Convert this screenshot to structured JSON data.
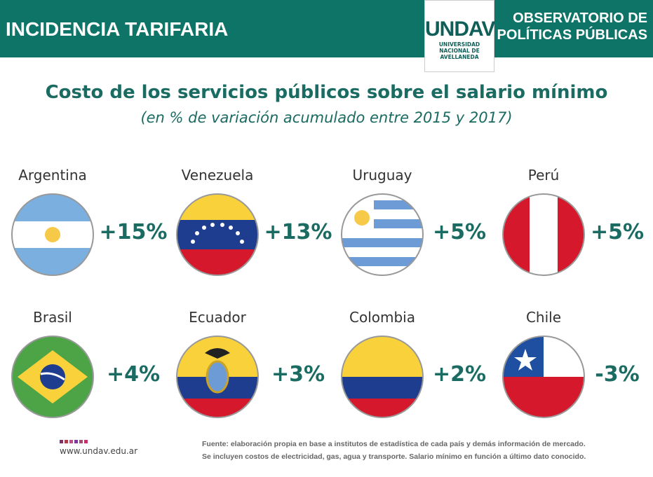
{
  "header": {
    "title": "INCIDENCIA TARIFARIA",
    "logo": "UNDAV",
    "logo_sub": [
      "UNIVERSIDAD",
      "NACIONAL DE",
      "AVELLANEDA"
    ],
    "observatory": [
      "OBSERVATORIO DE",
      "POLÍTICAS PÚBLICAS"
    ]
  },
  "title": "Costo de los servicios públicos sobre el salario mínimo",
  "subtitle": "(en % de variación acumulado entre 2015 y 2017)",
  "items": [
    {
      "name": "Argentina",
      "label": "+15%"
    },
    {
      "name": "Venezuela",
      "label": "+13%"
    },
    {
      "name": "Uruguay",
      "label": "+5%"
    },
    {
      "name": "Perú",
      "label": "+5%"
    },
    {
      "name": "Brasil",
      "label": "+4%"
    },
    {
      "name": "Ecuador",
      "label": "+3%"
    },
    {
      "name": "Colombia",
      "label": "+2%"
    },
    {
      "name": "Chile",
      "label": "-3%"
    }
  ],
  "footer": {
    "url": "www.undav.edu.ar",
    "source": [
      "Fuente: elaboración propia en base a institutos de estadística de cada país y demás información de mercado.",
      "Se incluyen costos de electricidad, gas, agua y transporte. Salario mínimo en función a último dato conocido."
    ]
  }
}
